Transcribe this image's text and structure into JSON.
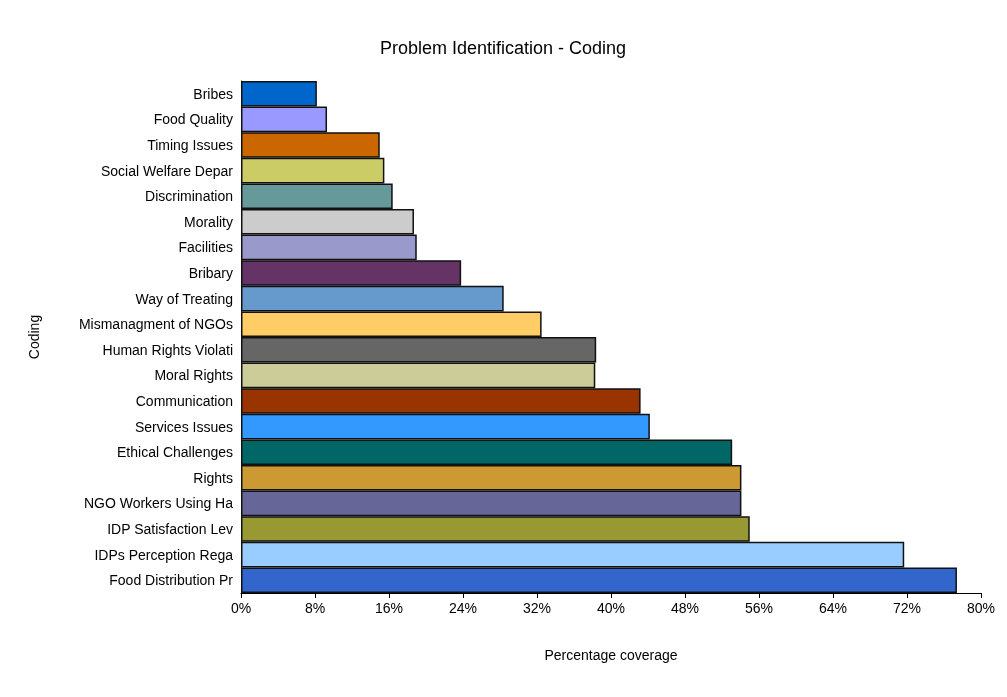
{
  "chart_data": {
    "type": "bar",
    "orientation": "horizontal",
    "title": "Problem Identification - Coding",
    "xlabel": "Percentage coverage",
    "ylabel": "Coding",
    "categories": [
      "Bribes",
      "Food Quality",
      "Timing Issues",
      "Social Welfare Depar",
      "Discrimination",
      "Morality",
      "Facilities",
      "Bribary",
      "Way of Treating",
      "Mismanagment of NGOs",
      "Human Rights Violati",
      "Moral Rights",
      "Communication",
      "Services Issues",
      "Ethical Challenges",
      "Rights",
      "NGO Workers Using Ha",
      "IDP Satisfaction Lev",
      "IDPs Perception Rega",
      "Food Distribution Pr"
    ],
    "values": [
      8.2,
      9.3,
      15.0,
      15.5,
      16.4,
      18.7,
      19.0,
      23.8,
      28.4,
      32.5,
      38.4,
      38.3,
      43.2,
      44.2,
      53.1,
      54.1,
      54.1,
      55.0,
      71.7,
      77.4
    ],
    "colors": [
      "#0066cc",
      "#9999ff",
      "#cc6600",
      "#cccc66",
      "#669999",
      "#cccccc",
      "#9999cc",
      "#663366",
      "#6699cc",
      "#ffcc66",
      "#666666",
      "#cccc99",
      "#993300",
      "#3399ff",
      "#006666",
      "#cc9933",
      "#666699",
      "#999933",
      "#99ccff",
      "#3366cc"
    ],
    "xlim": [
      0,
      80
    ],
    "xticks": [
      {
        "value": 0,
        "label": "0%"
      },
      {
        "value": 8,
        "label": "8%"
      },
      {
        "value": 16,
        "label": "16%"
      },
      {
        "value": 24,
        "label": "24%"
      },
      {
        "value": 32,
        "label": "32%"
      },
      {
        "value": 40,
        "label": "40%"
      },
      {
        "value": 48,
        "label": "48%"
      },
      {
        "value": 56,
        "label": "56%"
      },
      {
        "value": 64,
        "label": "64%"
      },
      {
        "value": 72,
        "label": "72%"
      },
      {
        "value": 80,
        "label": "80%"
      }
    ],
    "grid": false
  }
}
